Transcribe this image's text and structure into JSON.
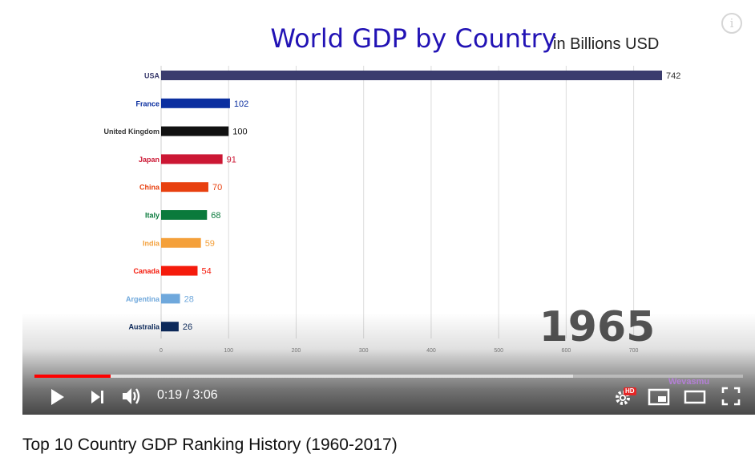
{
  "chart_data": {
    "type": "bar",
    "orientation": "horizontal",
    "title": "World GDP by Country",
    "subtitle": "in Billions USD",
    "year_label": "1965",
    "categories": [
      "USA",
      "France",
      "United Kingdom",
      "Japan",
      "China",
      "Italy",
      "India",
      "Canada",
      "Argentina",
      "Australia"
    ],
    "values": [
      742,
      102,
      100,
      91,
      70,
      68,
      59,
      54,
      28,
      26
    ],
    "value_labels": [
      "742",
      "102",
      "100",
      "91",
      "70",
      "68",
      "59",
      "54",
      "28",
      "26"
    ],
    "colors": [
      "#3b3c6e",
      "#0b2fa0",
      "#111111",
      "#cc1734",
      "#e8400f",
      "#0a7a3c",
      "#f4a03a",
      "#f51b0c",
      "#6fa8dc",
      "#0d2b5e"
    ],
    "x_ticks": [
      "0",
      "100",
      "200",
      "300",
      "400",
      "500",
      "600",
      "700"
    ],
    "xlim": [
      0,
      742
    ],
    "grid": true
  },
  "colors": {
    "title": "#2213b5",
    "subtitle": "#222222",
    "year": "#555555",
    "progress_played": "#ff0000"
  },
  "player": {
    "time": "0:19 / 3:06",
    "progress_fraction": 0.108,
    "buffer_fraction": 0.76,
    "watermark": "Wevasmu",
    "hd_badge": "HD",
    "info_glyph": "i",
    "icons": [
      "play-icon",
      "next-icon",
      "volume-icon",
      "settings-icon",
      "miniplayer-icon",
      "theater-icon",
      "fullscreen-icon",
      "info-icon"
    ]
  },
  "video": {
    "title": "Top 10 Country GDP Ranking History (1960-2017)"
  }
}
